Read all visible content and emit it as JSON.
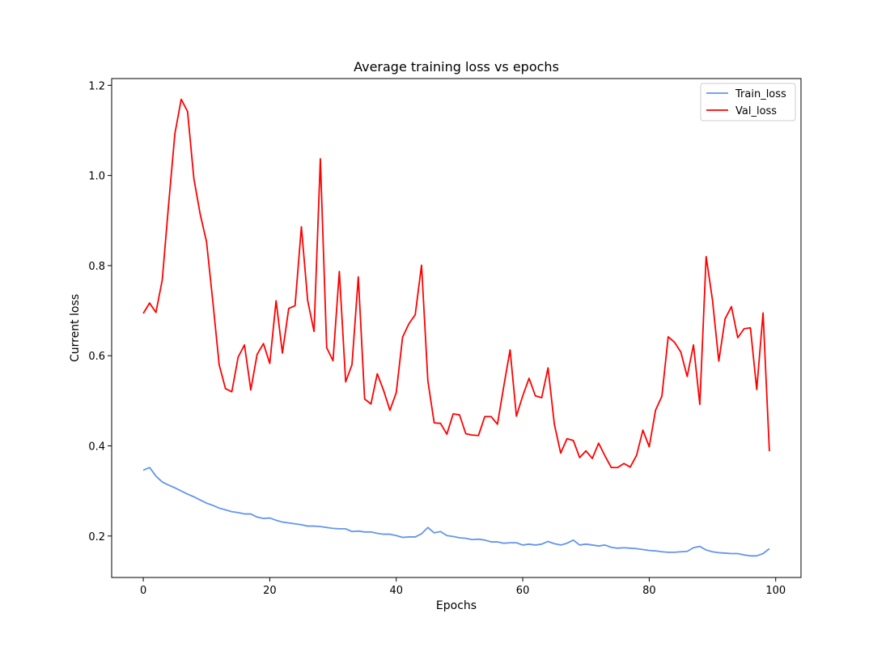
{
  "chart_data": {
    "type": "line",
    "title": "Average training loss vs epochs",
    "xlabel": "Epochs",
    "ylabel": "Current loss",
    "xlim": [
      -5,
      104
    ],
    "ylim": [
      0.108,
      1.215
    ],
    "xticks": [
      0,
      20,
      40,
      60,
      80,
      100
    ],
    "yticks": [
      0.2,
      0.4,
      0.6,
      0.8,
      1.0,
      1.2
    ],
    "xtick_labels": [
      "0",
      "20",
      "40",
      "60",
      "80",
      "100"
    ],
    "ytick_labels": [
      "0.2",
      "0.4",
      "0.6",
      "0.8",
      "1.0",
      "1.2"
    ],
    "grid": false,
    "legend_position": "upper right",
    "series": [
      {
        "name": "Train_loss",
        "color": "#6495ED",
        "x": [
          0,
          1,
          2,
          3,
          4,
          5,
          6,
          7,
          8,
          9,
          10,
          11,
          12,
          13,
          14,
          15,
          16,
          17,
          18,
          19,
          20,
          21,
          22,
          23,
          24,
          25,
          26,
          27,
          28,
          29,
          30,
          31,
          32,
          33,
          34,
          35,
          36,
          37,
          38,
          39,
          40,
          41,
          42,
          43,
          44,
          45,
          46,
          47,
          48,
          49,
          50,
          51,
          52,
          53,
          54,
          55,
          56,
          57,
          58,
          59,
          60,
          61,
          62,
          63,
          64,
          65,
          66,
          67,
          68,
          69,
          70,
          71,
          72,
          73,
          74,
          75,
          76,
          77,
          78,
          79,
          80,
          81,
          82,
          83,
          84,
          85,
          86,
          87,
          88,
          89,
          90,
          91,
          92,
          93,
          94,
          95,
          96,
          97,
          98,
          99
        ],
        "values": [
          0.346,
          0.352,
          0.333,
          0.32,
          0.313,
          0.307,
          0.3,
          0.293,
          0.287,
          0.28,
          0.273,
          0.268,
          0.262,
          0.258,
          0.254,
          0.252,
          0.249,
          0.249,
          0.242,
          0.239,
          0.24,
          0.235,
          0.231,
          0.229,
          0.227,
          0.225,
          0.222,
          0.222,
          0.221,
          0.219,
          0.217,
          0.216,
          0.216,
          0.21,
          0.211,
          0.209,
          0.209,
          0.206,
          0.204,
          0.204,
          0.201,
          0.197,
          0.198,
          0.198,
          0.205,
          0.219,
          0.207,
          0.21,
          0.201,
          0.199,
          0.196,
          0.195,
          0.192,
          0.193,
          0.191,
          0.187,
          0.187,
          0.184,
          0.185,
          0.185,
          0.18,
          0.182,
          0.18,
          0.182,
          0.188,
          0.183,
          0.18,
          0.184,
          0.191,
          0.18,
          0.182,
          0.18,
          0.178,
          0.18,
          0.175,
          0.173,
          0.174,
          0.173,
          0.172,
          0.17,
          0.168,
          0.167,
          0.165,
          0.164,
          0.164,
          0.165,
          0.166,
          0.174,
          0.177,
          0.169,
          0.165,
          0.163,
          0.162,
          0.161,
          0.161,
          0.158,
          0.156,
          0.156,
          0.161,
          0.172
        ]
      },
      {
        "name": "Val_loss",
        "color": "#FF0000",
        "x": [
          0,
          1,
          2,
          3,
          4,
          5,
          6,
          7,
          8,
          9,
          10,
          11,
          12,
          13,
          14,
          15,
          16,
          17,
          18,
          19,
          20,
          21,
          22,
          23,
          24,
          25,
          26,
          27,
          28,
          29,
          30,
          31,
          32,
          33,
          34,
          35,
          36,
          37,
          38,
          39,
          40,
          41,
          42,
          43,
          44,
          45,
          46,
          47,
          48,
          49,
          50,
          51,
          52,
          53,
          54,
          55,
          56,
          57,
          58,
          59,
          60,
          61,
          62,
          63,
          64,
          65,
          66,
          67,
          68,
          69,
          70,
          71,
          72,
          73,
          74,
          75,
          76,
          77,
          78,
          79,
          80,
          81,
          82,
          83,
          84,
          85,
          86,
          87,
          88,
          89,
          90,
          91,
          92,
          93,
          94,
          95,
          96,
          97,
          98,
          99
        ],
        "values": [
          0.694,
          0.717,
          0.696,
          0.768,
          0.935,
          1.093,
          1.169,
          1.142,
          0.993,
          0.914,
          0.853,
          0.72,
          0.58,
          0.527,
          0.52,
          0.597,
          0.624,
          0.524,
          0.603,
          0.627,
          0.583,
          0.722,
          0.606,
          0.705,
          0.711,
          0.886,
          0.722,
          0.654,
          1.037,
          0.618,
          0.589,
          0.787,
          0.542,
          0.58,
          0.775,
          0.504,
          0.493,
          0.56,
          0.523,
          0.479,
          0.518,
          0.641,
          0.671,
          0.691,
          0.801,
          0.544,
          0.451,
          0.45,
          0.426,
          0.471,
          0.469,
          0.427,
          0.424,
          0.423,
          0.465,
          0.465,
          0.448,
          0.532,
          0.613,
          0.466,
          0.511,
          0.55,
          0.511,
          0.507,
          0.573,
          0.448,
          0.384,
          0.416,
          0.412,
          0.374,
          0.389,
          0.372,
          0.406,
          0.378,
          0.352,
          0.352,
          0.361,
          0.353,
          0.379,
          0.435,
          0.398,
          0.479,
          0.51,
          0.642,
          0.63,
          0.608,
          0.554,
          0.624,
          0.492,
          0.82,
          0.724,
          0.588,
          0.682,
          0.709,
          0.64,
          0.66,
          0.662,
          0.525,
          0.695,
          0.388
        ]
      }
    ]
  }
}
